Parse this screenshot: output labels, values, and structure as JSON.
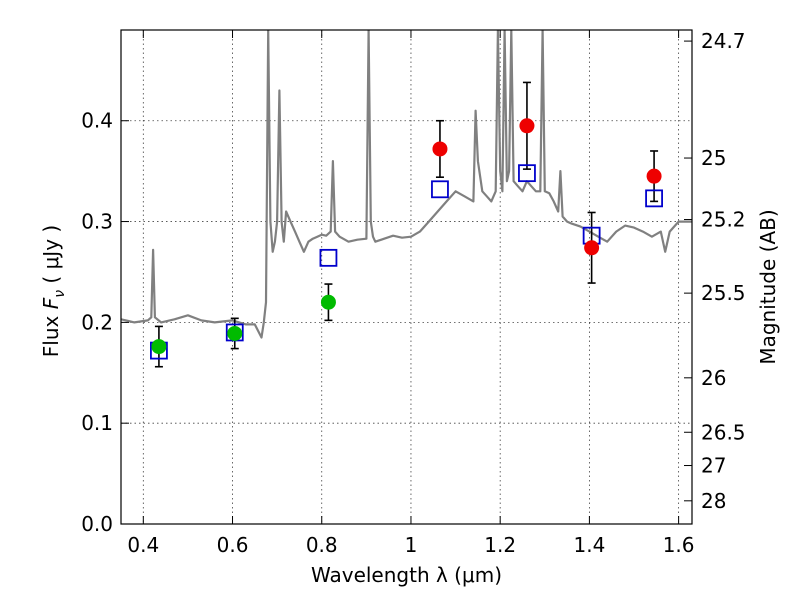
{
  "chart_data": {
    "type": "scatter",
    "title": "",
    "xlabel": "Wavelength  λ (μm)",
    "ylabel": "Flux  F_ν  ( μJy )",
    "ylabel_parts": {
      "prefix": "Flux  ",
      "sym": "F",
      "sub": "ν",
      "unit": "  ( μJy )"
    },
    "y2label": "Magnitude (AB)",
    "xlim": [
      0.35,
      1.63
    ],
    "ylim": [
      0.0,
      0.49
    ],
    "grid": true,
    "x_ticks": [
      0.4,
      0.6,
      0.8,
      1.0,
      1.2,
      1.4,
      1.6
    ],
    "x_tick_labels": [
      "0.4",
      "0.6",
      "0.8",
      "1",
      "1.2",
      "1.4",
      "1.6"
    ],
    "y_ticks": [
      0.0,
      0.1,
      0.2,
      0.3,
      0.4
    ],
    "y_tick_labels": [
      "0.0",
      "0.1",
      "0.2",
      "0.3",
      "0.4"
    ],
    "y2_ticks": [
      {
        "label": "24.7",
        "flux": 0.479
      },
      {
        "label": "25",
        "flux": 0.363
      },
      {
        "label": "25.2",
        "flux": 0.302
      },
      {
        "label": "25.5",
        "flux": 0.229
      },
      {
        "label": "26",
        "flux": 0.145
      },
      {
        "label": "26.5",
        "flux": 0.091
      },
      {
        "label": "27",
        "flux": 0.058
      },
      {
        "label": "28",
        "flux": 0.023
      }
    ],
    "series": [
      {
        "kind": "spectrum",
        "color": "#808080",
        "x": [
          0.35,
          0.38,
          0.41,
          0.418,
          0.422,
          0.426,
          0.44,
          0.47,
          0.5,
          0.53,
          0.56,
          0.6,
          0.63,
          0.65,
          0.665,
          0.67,
          0.675,
          0.68,
          0.685,
          0.69,
          0.695,
          0.7,
          0.705,
          0.71,
          0.715,
          0.72,
          0.73,
          0.74,
          0.75,
          0.76,
          0.77,
          0.78,
          0.79,
          0.8,
          0.81,
          0.82,
          0.825,
          0.83,
          0.84,
          0.86,
          0.88,
          0.9,
          0.905,
          0.91,
          0.915,
          0.92,
          0.94,
          0.96,
          0.98,
          1.0,
          1.02,
          1.04,
          1.06,
          1.08,
          1.1,
          1.12,
          1.14,
          1.145,
          1.15,
          1.16,
          1.17,
          1.18,
          1.19,
          1.195,
          1.2,
          1.205,
          1.21,
          1.215,
          1.22,
          1.225,
          1.23,
          1.24,
          1.25,
          1.26,
          1.27,
          1.28,
          1.29,
          1.295,
          1.3,
          1.31,
          1.32,
          1.33,
          1.335,
          1.34,
          1.35,
          1.36,
          1.38,
          1.4,
          1.42,
          1.44,
          1.46,
          1.48,
          1.5,
          1.52,
          1.54,
          1.56,
          1.57,
          1.58,
          1.6,
          1.63
        ],
        "y": [
          0.203,
          0.2,
          0.202,
          0.205,
          0.272,
          0.205,
          0.2,
          0.203,
          0.207,
          0.202,
          0.2,
          0.202,
          0.198,
          0.198,
          0.185,
          0.2,
          0.22,
          0.49,
          0.3,
          0.27,
          0.28,
          0.3,
          0.43,
          0.3,
          0.28,
          0.31,
          0.3,
          0.29,
          0.28,
          0.27,
          0.28,
          0.283,
          0.285,
          0.287,
          0.286,
          0.29,
          0.36,
          0.29,
          0.285,
          0.28,
          0.282,
          0.283,
          0.49,
          0.3,
          0.285,
          0.28,
          0.283,
          0.286,
          0.284,
          0.285,
          0.29,
          0.3,
          0.31,
          0.32,
          0.33,
          0.325,
          0.32,
          0.41,
          0.36,
          0.33,
          0.325,
          0.32,
          0.33,
          0.49,
          0.35,
          0.33,
          0.49,
          0.34,
          0.35,
          0.49,
          0.34,
          0.335,
          0.33,
          0.34,
          0.335,
          0.33,
          0.33,
          0.49,
          0.33,
          0.328,
          0.32,
          0.31,
          0.35,
          0.305,
          0.3,
          0.298,
          0.295,
          0.29,
          0.285,
          0.28,
          0.29,
          0.296,
          0.294,
          0.29,
          0.285,
          0.29,
          0.27,
          0.29,
          0.3,
          0.3
        ]
      },
      {
        "kind": "model-points",
        "color": "#0000cc",
        "marker": "open-square",
        "x": [
          0.435,
          0.605,
          0.815,
          1.065,
          1.26,
          1.405,
          1.545
        ],
        "y": [
          0.172,
          0.19,
          0.264,
          0.332,
          0.348,
          0.286,
          0.323
        ]
      },
      {
        "kind": "observed-optical",
        "color": "#00bb00",
        "marker": "filled-circle",
        "x": [
          0.435,
          0.605,
          0.815
        ],
        "y": [
          0.176,
          0.189,
          0.22
        ],
        "yerr": [
          0.02,
          0.015,
          0.018
        ]
      },
      {
        "kind": "observed-nir",
        "color": "#ee0000",
        "marker": "filled-circle",
        "x": [
          1.065,
          1.26,
          1.405,
          1.545
        ],
        "y": [
          0.372,
          0.395,
          0.274,
          0.345
        ],
        "yerr": [
          0.028,
          0.043,
          0.035,
          0.025
        ]
      }
    ]
  }
}
